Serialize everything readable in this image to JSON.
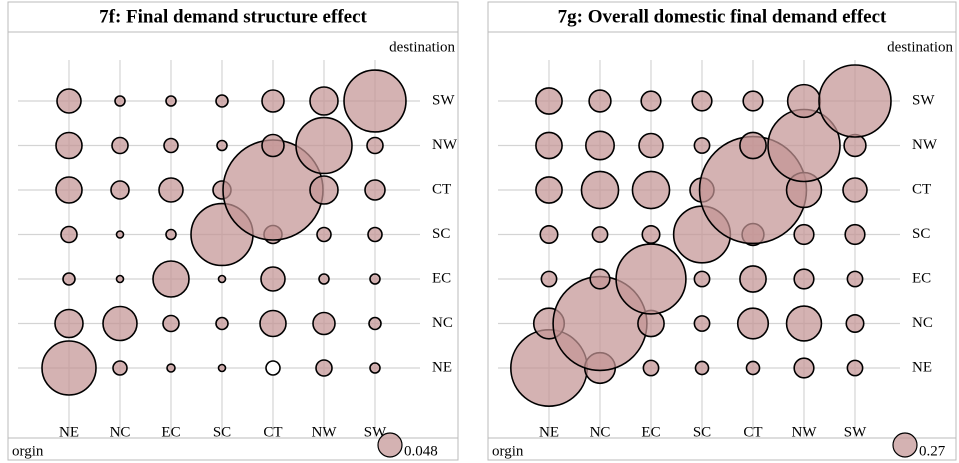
{
  "chart_data": [
    {
      "type": "bubble",
      "title": "7f: Final demand structure effect",
      "x_label": "orgin",
      "y_label": "destination",
      "x": [
        "NE",
        "NC",
        "EC",
        "SC",
        "CT",
        "NW",
        "SW"
      ],
      "y": [
        "NE",
        "NC",
        "EC",
        "SC",
        "CT",
        "NW",
        "SW"
      ],
      "color": "#c49494",
      "negative_color": "#ffffff",
      "sizes": [
        [
          0.243,
          0.0163,
          0.0053,
          0.0041,
          -0.0163,
          0.0213,
          0.0083
        ],
        [
          0.0653,
          0.0963,
          0.0213,
          0.012,
          0.0563,
          0.0403,
          0.012
        ],
        [
          0.012,
          0.0041,
          0.108,
          0.0041,
          0.048,
          0.0083,
          0.0083
        ],
        [
          0.0213,
          0.0041,
          0.0083,
          0.32,
          0.027,
          0.0163,
          0.0163
        ],
        [
          0.0563,
          0.027,
          0.048,
          0.027,
          0.833,
          0.0653,
          0.0333
        ],
        [
          0.0563,
          0.0213,
          0.0163,
          0.0083,
          0.0403,
          0.261,
          0.0213
        ],
        [
          0.048,
          0.0083,
          0.0083,
          0.012,
          0.0403,
          0.0653,
          0.32
        ]
      ],
      "legend_size": 0.048
    },
    {
      "type": "bubble",
      "title": "7g: Overall domestic final demand effect",
      "x_label": "orgin",
      "y_label": "destination",
      "x": [
        "NE",
        "NC",
        "EC",
        "SC",
        "CT",
        "NW",
        "SW"
      ],
      "y": [
        "NE",
        "NC",
        "EC",
        "SC",
        "CT",
        "NW",
        "SW"
      ],
      "color": "#c49494",
      "negative_color": "#ffffff",
      "sizes": [
        [
          2.733,
          0.437,
          0.109,
          0.08,
          0.08,
          0.181,
          0.109
        ],
        [
          0.437,
          4.125,
          0.321,
          0.109,
          0.437,
          0.571,
          0.143
        ],
        [
          0.109,
          0.181,
          2.285,
          0.109,
          0.321,
          0.181,
          0.109
        ],
        [
          0.143,
          0.109,
          0.143,
          1.508,
          0.223,
          0.181,
          0.181
        ],
        [
          0.321,
          0.645,
          0.645,
          0.27,
          5.357,
          0.571,
          0.27
        ],
        [
          0.321,
          0.377,
          0.27,
          0.109,
          0.321,
          2.43,
          0.223
        ],
        [
          0.321,
          0.223,
          0.181,
          0.181,
          0.181,
          0.502,
          2.43
        ]
      ],
      "legend_size": 0.27
    }
  ]
}
